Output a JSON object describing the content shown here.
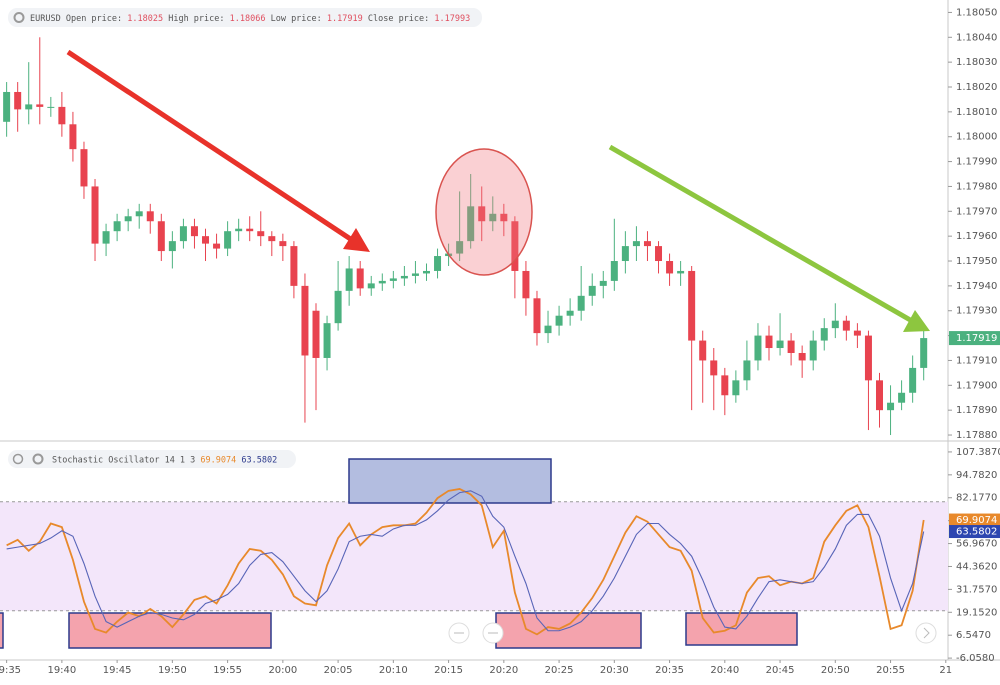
{
  "chart_data": [
    {
      "type": "candlestick",
      "symbol": "EURUSD",
      "ohlc_legend": [
        {
          "label": "Open price:",
          "value": 1.18025
        },
        {
          "label": "High price:",
          "value": 1.18066
        },
        {
          "label": "Low price:",
          "value": 1.17919
        },
        {
          "label": "Close price:",
          "value": 1.17993
        }
      ],
      "x": [
        1175,
        1176,
        1177,
        1178,
        1179,
        1180,
        1181,
        1182,
        1183,
        1184,
        1185,
        1186,
        1187,
        1188,
        1189,
        1190,
        1191,
        1192,
        1193,
        1194,
        1195,
        1196,
        1197,
        1198,
        1199,
        1200,
        1201,
        1202,
        1203,
        1204,
        1205,
        1206,
        1207,
        1208,
        1209,
        1210,
        1211,
        1212,
        1213,
        1214,
        1215,
        1216,
        1217,
        1218,
        1219,
        1220,
        1221,
        1222,
        1223,
        1224,
        1225,
        1226,
        1227,
        1228,
        1229,
        1230,
        1231,
        1232,
        1233,
        1234,
        1235,
        1236,
        1237,
        1238,
        1239,
        1240,
        1241,
        1242,
        1243,
        1244,
        1245,
        1246,
        1247,
        1248,
        1249,
        1250,
        1251,
        1252,
        1253,
        1254,
        1255,
        1256,
        1257,
        1258
      ],
      "open": [
        1.18006,
        1.18018,
        1.18011,
        1.18013,
        1.18012,
        1.18012,
        1.18005,
        1.17995,
        1.1798,
        1.17957,
        1.17962,
        1.17966,
        1.17968,
        1.1797,
        1.17966,
        1.17954,
        1.17958,
        1.17964,
        1.1796,
        1.17957,
        1.17955,
        1.17962,
        1.17963,
        1.17962,
        1.1796,
        1.17958,
        1.17956,
        1.1794,
        1.1793,
        1.17911,
        1.17925,
        1.17938,
        1.17947,
        1.17939,
        1.17941,
        1.17942,
        1.17943,
        1.17944,
        1.17945,
        1.17946,
        1.17952,
        1.17953,
        1.17958,
        1.17972,
        1.17966,
        1.17969,
        1.17966,
        1.17946,
        1.17935,
        1.17921,
        1.17924,
        1.17928,
        1.1793,
        1.17936,
        1.1794,
        1.17942,
        1.1795,
        1.17956,
        1.17958,
        1.17956,
        1.1795,
        1.17945,
        1.17946,
        1.17918,
        1.1791,
        1.17904,
        1.17896,
        1.17902,
        1.1791,
        1.1792,
        1.17915,
        1.17918,
        1.17913,
        1.1791,
        1.17918,
        1.17923,
        1.17926,
        1.17922,
        1.1792,
        1.17902,
        1.1789,
        1.17893,
        1.17897,
        1.17907
      ],
      "high": [
        1.18022,
        1.18022,
        1.1803,
        1.1804,
        1.18016,
        1.18018,
        1.1801,
        1.17998,
        1.17983,
        1.17965,
        1.17969,
        1.17971,
        1.17973,
        1.17973,
        1.17969,
        1.17962,
        1.17967,
        1.17967,
        1.17963,
        1.17961,
        1.17966,
        1.17967,
        1.17968,
        1.1797,
        1.17962,
        1.17961,
        1.17958,
        1.17945,
        1.17933,
        1.17928,
        1.1795,
        1.17952,
        1.1795,
        1.17944,
        1.17945,
        1.17946,
        1.17948,
        1.1795,
        1.17949,
        1.17955,
        1.17957,
        1.17978,
        1.17985,
        1.1798,
        1.17976,
        1.17973,
        1.17968,
        1.1795,
        1.17938,
        1.1793,
        1.17932,
        1.17935,
        1.17948,
        1.17945,
        1.17946,
        1.17967,
        1.17962,
        1.17964,
        1.17962,
        1.17958,
        1.17953,
        1.1795,
        1.17948,
        1.17922,
        1.17915,
        1.17907,
        1.17906,
        1.17918,
        1.17925,
        1.17924,
        1.17929,
        1.17921,
        1.17916,
        1.17922,
        1.17927,
        1.17933,
        1.17928,
        1.17925,
        1.17922,
        1.17905,
        1.179,
        1.17902,
        1.17912,
        1.17925
      ],
      "low": [
        1.18,
        1.18002,
        1.18005,
        1.18005,
        1.18008,
        1.18,
        1.1799,
        1.17975,
        1.1795,
        1.17952,
        1.17958,
        1.17962,
        1.17963,
        1.17961,
        1.1795,
        1.17947,
        1.17955,
        1.17955,
        1.1795,
        1.17951,
        1.17952,
        1.17958,
        1.17958,
        1.17956,
        1.17952,
        1.1795,
        1.17935,
        1.17885,
        1.1789,
        1.17906,
        1.17922,
        1.17932,
        1.17936,
        1.17936,
        1.17938,
        1.17939,
        1.1794,
        1.17941,
        1.17942,
        1.17943,
        1.17948,
        1.1795,
        1.17955,
        1.17958,
        1.17962,
        1.1796,
        1.17935,
        1.17928,
        1.17916,
        1.17917,
        1.1792,
        1.17924,
        1.17926,
        1.17932,
        1.17935,
        1.17938,
        1.17945,
        1.1795,
        1.1795,
        1.17945,
        1.1794,
        1.1794,
        1.1789,
        1.17893,
        1.1789,
        1.17888,
        1.17893,
        1.17898,
        1.17906,
        1.1791,
        1.17912,
        1.17908,
        1.17903,
        1.17906,
        1.17914,
        1.17919,
        1.17918,
        1.17915,
        1.17882,
        1.17883,
        1.1788,
        1.1789,
        1.17893,
        1.17902
      ],
      "close": [
        1.18018,
        1.18011,
        1.18013,
        1.18012,
        1.18012,
        1.18005,
        1.17995,
        1.1798,
        1.17957,
        1.17962,
        1.17966,
        1.17968,
        1.1797,
        1.17966,
        1.17954,
        1.17958,
        1.17964,
        1.1796,
        1.17957,
        1.17955,
        1.17962,
        1.17963,
        1.17962,
        1.1796,
        1.17958,
        1.17956,
        1.1794,
        1.17912,
        1.17911,
        1.17925,
        1.17938,
        1.17947,
        1.17939,
        1.17941,
        1.17942,
        1.17943,
        1.17944,
        1.17945,
        1.17946,
        1.17952,
        1.17953,
        1.17958,
        1.17972,
        1.17966,
        1.17969,
        1.17966,
        1.17946,
        1.17935,
        1.17921,
        1.17924,
        1.17928,
        1.1793,
        1.17936,
        1.1794,
        1.17942,
        1.1795,
        1.17956,
        1.17958,
        1.17956,
        1.1795,
        1.17945,
        1.17946,
        1.17918,
        1.1791,
        1.17904,
        1.17896,
        1.17902,
        1.1791,
        1.1792,
        1.17915,
        1.17918,
        1.17913,
        1.1791,
        1.17918,
        1.17923,
        1.17926,
        1.17922,
        1.1792,
        1.17902,
        1.1789,
        1.17893,
        1.17897,
        1.17907,
        1.17919
      ],
      "up_color": "#4bb17f",
      "down_color": "#e8434f",
      "xlim": [
        1174.4,
        1260.2
      ],
      "xticks": [
        {
          "value": 1175,
          "label": "19:35"
        },
        {
          "value": 1180,
          "label": "19:40"
        },
        {
          "value": 1185,
          "label": "19:45"
        },
        {
          "value": 1190,
          "label": "19:50"
        },
        {
          "value": 1195,
          "label": "19:55"
        },
        {
          "value": 1200,
          "label": "20:00"
        },
        {
          "value": 1205,
          "label": "20:05"
        },
        {
          "value": 1210,
          "label": "20:10"
        },
        {
          "value": 1215,
          "label": "20:15"
        },
        {
          "value": 1220,
          "label": "20:20"
        },
        {
          "value": 1225,
          "label": "20:25"
        },
        {
          "value": 1230,
          "label": "20:30"
        },
        {
          "value": 1235,
          "label": "20:35"
        },
        {
          "value": 1240,
          "label": "20:40"
        },
        {
          "value": 1245,
          "label": "20:45"
        },
        {
          "value": 1250,
          "label": "20:50"
        },
        {
          "value": 1255,
          "label": "20:55"
        },
        {
          "value": 1260,
          "label": "21"
        }
      ],
      "ylim": [
        1.17878,
        1.18055
      ],
      "yticks": [
        {
          "value": 1.1805,
          "label": "1.18050"
        },
        {
          "value": 1.1804,
          "label": "1.18040"
        },
        {
          "value": 1.1803,
          "label": "1.18030"
        },
        {
          "value": 1.1802,
          "label": "1.18020"
        },
        {
          "value": 1.1801,
          "label": "1.18010"
        },
        {
          "value": 1.18,
          "label": "1.18000"
        },
        {
          "value": 1.1799,
          "label": "1.17990"
        },
        {
          "value": 1.1798,
          "label": "1.17980"
        },
        {
          "value": 1.1797,
          "label": "1.17970"
        },
        {
          "value": 1.1796,
          "label": "1.17960"
        },
        {
          "value": 1.1795,
          "label": "1.17950"
        },
        {
          "value": 1.1794,
          "label": "1.17940"
        },
        {
          "value": 1.1793,
          "label": "1.17930"
        },
        {
          "value": 1.1792,
          "label": "1.17920"
        },
        {
          "value": 1.1791,
          "label": "1.17910"
        },
        {
          "value": 1.179,
          "label": "1.17900"
        },
        {
          "value": 1.1789,
          "label": "1.17890"
        },
        {
          "value": 1.1788,
          "label": "1.17880"
        }
      ]
    },
    {
      "type": "line",
      "title": "Stochastic Oscillator 14 1 3",
      "series": [
        {
          "color": "#e8892b",
          "values": [
            56,
            59,
            53,
            58,
            68,
            66,
            48,
            25,
            10,
            8,
            14,
            19,
            17,
            21,
            17,
            11,
            18,
            26,
            28,
            24,
            34,
            46,
            54,
            53,
            48,
            40,
            28,
            24,
            23,
            45,
            60,
            68,
            56,
            62,
            66,
            67,
            67,
            68,
            74,
            82,
            86,
            87,
            84,
            78,
            55,
            64,
            30,
            10,
            7,
            11,
            10,
            13,
            19,
            27,
            37,
            50,
            63,
            72,
            69,
            62,
            55,
            53,
            42,
            16,
            8,
            9,
            12,
            30,
            38,
            39,
            34,
            36,
            35,
            38,
            58,
            67,
            75,
            78,
            66,
            39,
            10,
            12,
            31,
            69.9074
          ]
        },
        {
          "color": "#5865b8",
          "values": [
            54,
            55,
            56,
            57,
            60,
            64,
            61,
            46,
            28,
            14,
            11,
            14,
            17,
            19,
            18,
            16,
            15,
            18,
            24,
            26,
            29,
            35,
            45,
            51,
            52,
            47,
            39,
            31,
            25,
            31,
            43,
            58,
            61,
            62,
            61,
            65,
            67,
            67,
            70,
            75,
            81,
            85,
            86,
            83,
            72,
            66,
            50,
            35,
            16,
            9,
            9,
            11,
            14,
            20,
            28,
            38,
            50,
            62,
            68,
            68,
            62,
            57,
            50,
            37,
            22,
            11,
            10,
            17,
            27,
            36,
            37,
            36,
            35,
            36,
            44,
            54,
            67,
            73,
            73,
            61,
            38,
            20,
            35,
            63.5802
          ]
        }
      ],
      "upper_band": 80,
      "lower_band": 20,
      "band_color": "#f3e6fa",
      "ylim": [
        -7.1,
        113.4
      ],
      "yticks": [
        {
          "value": 107.387,
          "label": "107.3870"
        },
        {
          "value": 94.782,
          "label": "94.7820"
        },
        {
          "value": 82.177,
          "label": "82.1770"
        },
        {
          "value": 69.572,
          "label": "69.5720"
        },
        {
          "value": 56.967,
          "label": "56.9670"
        },
        {
          "value": 44.362,
          "label": "44.3620"
        },
        {
          "value": 31.757,
          "label": "31.7570"
        },
        {
          "value": 19.152,
          "label": "19.1520"
        },
        {
          "value": 6.547,
          "label": "6.5470"
        },
        {
          "value": -6.058,
          "label": "-6.0580"
        }
      ]
    }
  ]
}
